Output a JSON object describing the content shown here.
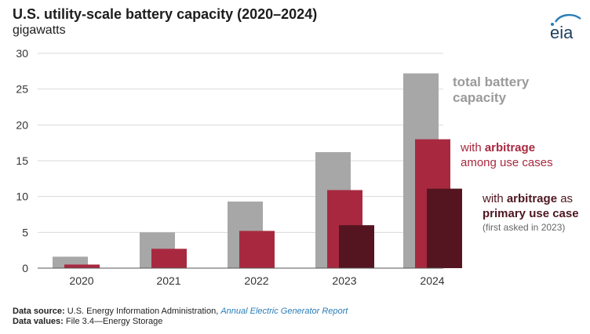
{
  "header": {
    "title": "U.S. utility-scale battery capacity (2020–2024)",
    "subtitle": "gigawatts",
    "logo_text": "eia"
  },
  "legend": {
    "total_line1": "total battery",
    "total_line2": "capacity",
    "among_prefix": "with ",
    "among_bold": "arbitrage",
    "among_line2": "among use cases",
    "primary_prefix": "with ",
    "primary_bold": "arbitrage",
    "primary_suffix": " as",
    "primary_line2": "primary use case",
    "primary_note": "(first asked in 2023)"
  },
  "footer": {
    "source_label": "Data source:",
    "source_text": " U.S. Energy Information Administration, ",
    "source_link": "Annual Electric Generator Report",
    "values_label": "Data values:",
    "values_text": " File 3.4—Energy Storage"
  },
  "colors": {
    "total": "#a7a7a7",
    "among": "#a8293f",
    "primary": "#551520",
    "grid": "#d9d9d9",
    "axis": "#555555"
  },
  "chart_data": {
    "type": "bar",
    "categories": [
      "2020",
      "2021",
      "2022",
      "2023",
      "2024"
    ],
    "ylim": [
      0,
      30
    ],
    "yticks": [
      0,
      5,
      10,
      15,
      20,
      25,
      30
    ],
    "grid": true,
    "legend_placement": "right",
    "series": [
      {
        "name": "total battery capacity",
        "color_key": "total",
        "values": [
          1.6,
          5.0,
          9.3,
          16.2,
          27.2
        ]
      },
      {
        "name": "with arbitrage among use cases",
        "color_key": "among",
        "values": [
          0.5,
          2.7,
          5.2,
          10.9,
          18.0
        ]
      },
      {
        "name": "with arbitrage as primary use case",
        "color_key": "primary",
        "values": [
          null,
          null,
          null,
          6.0,
          11.1
        ]
      }
    ]
  }
}
